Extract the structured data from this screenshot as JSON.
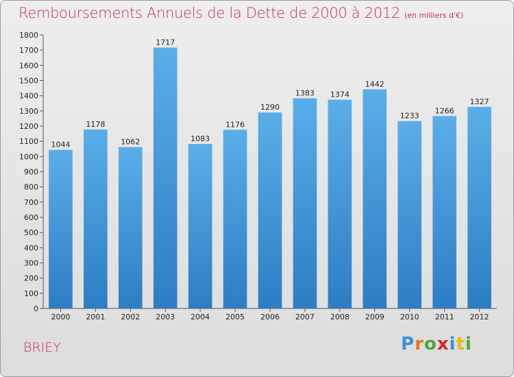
{
  "header": {
    "title": "Remboursements Annuels de la Dette de 2000 à 2012",
    "subtitle": "(en milliers d'€)"
  },
  "footer": {
    "commune": "BRIEY",
    "logo_letters": [
      "P",
      "r",
      "o",
      "x",
      "i",
      "t",
      "i"
    ],
    "logo_colors": [
      "#3a8fd6",
      "#e8771e",
      "#4aa83a",
      "#d6262a",
      "#3a8fd6",
      "#e8b81e",
      "#4aa83a"
    ]
  },
  "colors": {
    "bar_light": "#5aaee8",
    "bar_dark": "#2d7dc4",
    "axis": "#555555",
    "title": "#c8286e"
  },
  "chart_data": {
    "type": "bar",
    "categories": [
      "2000",
      "2001",
      "2002",
      "2003",
      "2004",
      "2005",
      "2006",
      "2007",
      "2008",
      "2009",
      "2010",
      "2011",
      "2012"
    ],
    "values": [
      1044,
      1178,
      1062,
      1717,
      1083,
      1176,
      1290,
      1383,
      1374,
      1442,
      1233,
      1266,
      1327
    ],
    "title": "Remboursements Annuels de la Dette de 2000 à 2012",
    "subtitle": "(en milliers d'€)",
    "xlabel": "",
    "ylabel": "",
    "ylim": [
      0,
      1800
    ],
    "yticks": [
      0,
      100,
      200,
      300,
      400,
      500,
      600,
      700,
      800,
      900,
      1000,
      1100,
      1200,
      1300,
      1400,
      1500,
      1600,
      1700,
      1800
    ],
    "grid": false,
    "legend": "none"
  }
}
